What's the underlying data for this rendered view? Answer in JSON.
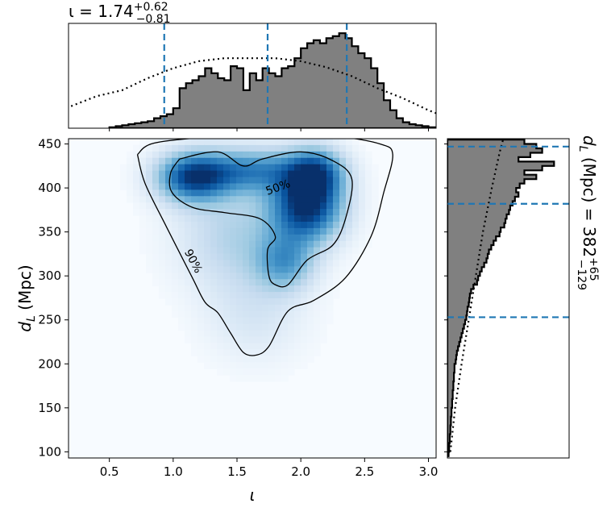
{
  "chart_data": [
    {
      "type": "heatmap",
      "panel": "joint",
      "xlabel": "ι",
      "ylabel_main": "d",
      "ylabel_sub": "L",
      "ylabel_unit": " (Mpc)",
      "xlim": [
        0.18,
        3.06
      ],
      "ylim": [
        93,
        456
      ],
      "x_ticks": [
        0.5,
        1.0,
        1.5,
        2.0,
        2.5,
        3.0
      ],
      "x_tick_labels": [
        "0.5",
        "1.0",
        "1.5",
        "2.0",
        "2.5",
        "3.0"
      ],
      "y_ticks": [
        100,
        150,
        200,
        250,
        300,
        350,
        400,
        450
      ],
      "y_tick_labels": [
        "100",
        "150",
        "200",
        "250",
        "300",
        "350",
        "400",
        "450"
      ],
      "colormap": "Blues",
      "density_peaks": [
        {
          "x": 2.05,
          "y": 378,
          "sigma_x": 0.2,
          "sigma_y": 28,
          "amp": 1.0
        },
        {
          "x": 1.15,
          "y": 412,
          "sigma_x": 0.2,
          "sigma_y": 20,
          "amp": 0.88
        },
        {
          "x": 1.62,
          "y": 420,
          "sigma_x": 0.3,
          "sigma_y": 18,
          "amp": 0.62
        },
        {
          "x": 2.12,
          "y": 418,
          "sigma_x": 0.16,
          "sigma_y": 20,
          "amp": 0.7
        },
        {
          "x": 1.88,
          "y": 315,
          "sigma_x": 0.16,
          "sigma_y": 22,
          "amp": 0.48
        },
        {
          "x": 1.5,
          "y": 345,
          "sigma_x": 0.32,
          "sigma_y": 42,
          "amp": 0.32
        },
        {
          "x": 1.65,
          "y": 255,
          "sigma_x": 0.28,
          "sigma_y": 38,
          "amp": 0.16
        }
      ],
      "contours": [
        {
          "label": "50%",
          "label_at": [
            1.82,
            401
          ],
          "points": [
            [
              1.05,
              433
            ],
            [
              1.35,
              441
            ],
            [
              1.55,
              425
            ],
            [
              1.7,
              433
            ],
            [
              2.0,
              441
            ],
            [
              2.25,
              431
            ],
            [
              2.4,
              410
            ],
            [
              2.35,
              365
            ],
            [
              2.25,
              335
            ],
            [
              2.05,
              318
            ],
            [
              1.9,
              290
            ],
            [
              1.8,
              290
            ],
            [
              1.75,
              300
            ],
            [
              1.74,
              330
            ],
            [
              1.8,
              345
            ],
            [
              1.68,
              365
            ],
            [
              1.4,
              372
            ],
            [
              1.15,
              378
            ],
            [
              0.99,
              395
            ],
            [
              0.98,
              417
            ],
            [
              1.05,
              433
            ]
          ]
        },
        {
          "label": "90%",
          "label_at": [
            1.16,
            317
          ],
          "points": [
            [
              0.72,
              438
            ],
            [
              0.85,
              451
            ],
            [
              1.3,
              458
            ],
            [
              1.6,
              458
            ],
            [
              1.9,
              458
            ],
            [
              2.3,
              458
            ],
            [
              2.62,
              450
            ],
            [
              2.72,
              438
            ],
            [
              2.65,
              395
            ],
            [
              2.55,
              345
            ],
            [
              2.35,
              298
            ],
            [
              2.1,
              272
            ],
            [
              1.9,
              260
            ],
            [
              1.75,
              220
            ],
            [
              1.65,
              210
            ],
            [
              1.55,
              213
            ],
            [
              1.45,
              235
            ],
            [
              1.35,
              258
            ],
            [
              1.25,
              270
            ],
            [
              1.15,
              298
            ],
            [
              0.95,
              355
            ],
            [
              0.78,
              405
            ],
            [
              0.72,
              438
            ]
          ]
        }
      ]
    },
    {
      "type": "histogram",
      "panel": "top-marginal",
      "title_main": "ι = 1.74",
      "title_sup": "+0.62",
      "title_sub": "−0.81",
      "xlim": [
        0.18,
        3.06
      ],
      "median": 1.74,
      "interval": [
        0.93,
        2.36
      ],
      "bin_edges_start": 0.5,
      "bin_width": 0.05,
      "posterior_counts": [
        1,
        2,
        3,
        4,
        5,
        6,
        7,
        10,
        12,
        14,
        20,
        40,
        45,
        48,
        52,
        60,
        55,
        50,
        48,
        62,
        60,
        38,
        55,
        48,
        60,
        55,
        52,
        60,
        62,
        70,
        80,
        85,
        88,
        85,
        90,
        92,
        95,
        90,
        82,
        75,
        70,
        60,
        45,
        28,
        18,
        10,
        6,
        4,
        3,
        2,
        1,
        1
      ],
      "prior_curve": [
        [
          0.2,
          22
        ],
        [
          0.4,
          32
        ],
        [
          0.6,
          38
        ],
        [
          0.8,
          50
        ],
        [
          1.0,
          60
        ],
        [
          1.2,
          67
        ],
        [
          1.4,
          70
        ],
        [
          1.6,
          70
        ],
        [
          1.8,
          70
        ],
        [
          2.0,
          67
        ],
        [
          2.2,
          61
        ],
        [
          2.4,
          52
        ],
        [
          2.6,
          40
        ],
        [
          2.8,
          30
        ],
        [
          3.0,
          18
        ],
        [
          3.06,
          15
        ]
      ],
      "ymax": 100
    },
    {
      "type": "histogram",
      "panel": "right-marginal",
      "title_main": "d",
      "title_sub_L": "L",
      "title_rest": " (Mpc) = 382",
      "title_sup": "+65",
      "title_sub": "−129",
      "ylim": [
        93,
        456
      ],
      "median": 382,
      "interval": [
        253,
        447
      ],
      "bin_edges_start": 95,
      "bin_width": 5,
      "posterior_counts": [
        2,
        3,
        3,
        4,
        4,
        5,
        5,
        6,
        6,
        7,
        7,
        8,
        8,
        9,
        9,
        10,
        10,
        11,
        11,
        12,
        12,
        14,
        15,
        16,
        18,
        20,
        22,
        24,
        26,
        28,
        30,
        32,
        33,
        34,
        36,
        37,
        38,
        40,
        44,
        50,
        52,
        55,
        58,
        62,
        66,
        68,
        70,
        74,
        78,
        82,
        88,
        90,
        96,
        98,
        100,
        104,
        106,
        110,
        114,
        120,
        116,
        122,
        130,
        150,
        130,
        160,
        180,
        120,
        140,
        160,
        150,
        130
      ],
      "prior_curve": [
        [
          100,
          5
        ],
        [
          150,
          13
        ],
        [
          200,
          24
        ],
        [
          250,
          36
        ],
        [
          300,
          48
        ],
        [
          350,
          60
        ],
        [
          400,
          75
        ],
        [
          440,
          88
        ],
        [
          455,
          94
        ]
      ],
      "xmax": 200
    }
  ]
}
